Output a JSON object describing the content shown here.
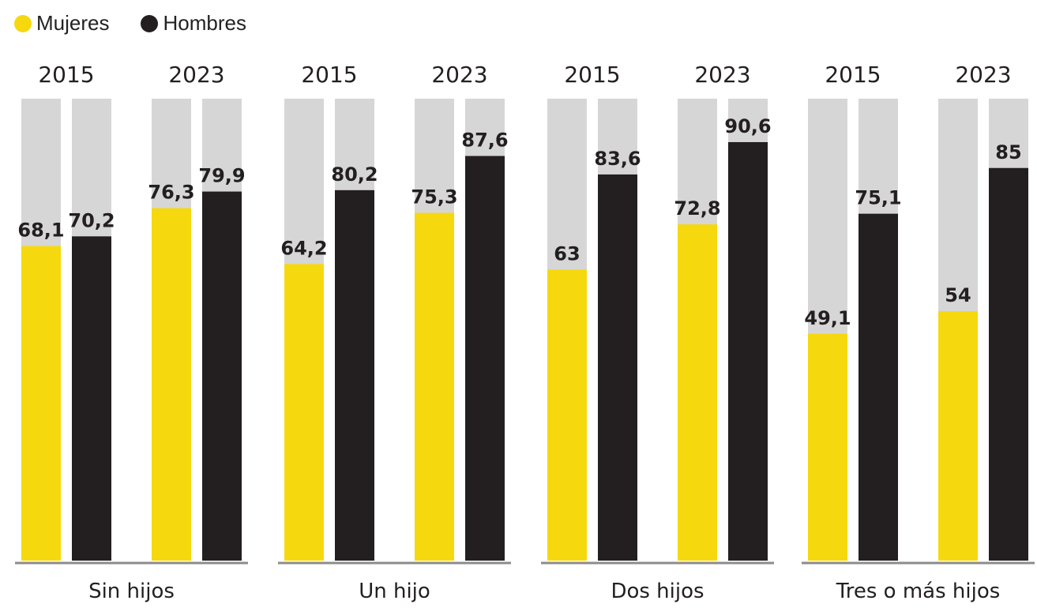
{
  "legend": [
    {
      "label": "Mujeres",
      "color": "#f6d80f"
    },
    {
      "label": "Hombres",
      "color": "#231f20"
    }
  ],
  "colors": {
    "background_bar": "#d6d6d6",
    "baseline": "#8c8c8c",
    "text": "#231f20"
  },
  "chart_data": {
    "type": "bar",
    "ylim": [
      0,
      100
    ],
    "grid": false,
    "legend_placement": "top-left",
    "groups": [
      {
        "label": "Sin hijos",
        "years": [
          {
            "year": "2015",
            "mujeres": 68.1,
            "hombres": 70.2,
            "mujeres_label": "68,1",
            "hombres_label": "70,2"
          },
          {
            "year": "2023",
            "mujeres": 76.3,
            "hombres": 79.9,
            "mujeres_label": "76,3",
            "hombres_label": "79,9"
          }
        ]
      },
      {
        "label": "Un hijo",
        "years": [
          {
            "year": "2015",
            "mujeres": 64.2,
            "hombres": 80.2,
            "mujeres_label": "64,2",
            "hombres_label": "80,2"
          },
          {
            "year": "2023",
            "mujeres": 75.3,
            "hombres": 87.6,
            "mujeres_label": "75,3",
            "hombres_label": "87,6"
          }
        ]
      },
      {
        "label": "Dos hijos",
        "years": [
          {
            "year": "2015",
            "mujeres": 63,
            "hombres": 83.6,
            "mujeres_label": "63",
            "hombres_label": "83,6"
          },
          {
            "year": "2023",
            "mujeres": 72.8,
            "hombres": 90.6,
            "mujeres_label": "72,8",
            "hombres_label": "90,6"
          }
        ]
      },
      {
        "label": "Tres o más hijos",
        "years": [
          {
            "year": "2015",
            "mujeres": 49.1,
            "hombres": 75.1,
            "mujeres_label": "49,1",
            "hombres_label": "75,1"
          },
          {
            "year": "2023",
            "mujeres": 54,
            "hombres": 85,
            "mujeres_label": "54",
            "hombres_label": "85"
          }
        ]
      }
    ]
  }
}
